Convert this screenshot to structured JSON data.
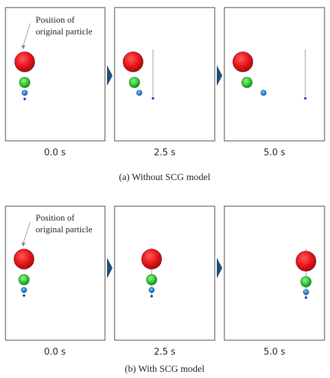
{
  "annotation": "Position of original particle",
  "annotation_lines": [
    "Position of",
    "original particle"
  ],
  "panel_groups": [
    {
      "caption": "(a) Without SCG model",
      "frames": [
        {
          "time": "0.0 s"
        },
        {
          "time": "2.5 s"
        },
        {
          "time": "5.0 s"
        }
      ]
    },
    {
      "caption": "(b) With SCG model",
      "frames": [
        {
          "time": "0.0 s"
        },
        {
          "time": "2.5 s"
        },
        {
          "time": "5.0 s"
        }
      ]
    }
  ],
  "particle_colors": {
    "large": "#e8141b",
    "medium": "#2fd035",
    "small": "#2b8be0",
    "tiny": "#1a2bb0"
  },
  "arrow_color": "#1f4e79",
  "frame_border_color": "#404040",
  "trace_line_color": "#999999"
}
